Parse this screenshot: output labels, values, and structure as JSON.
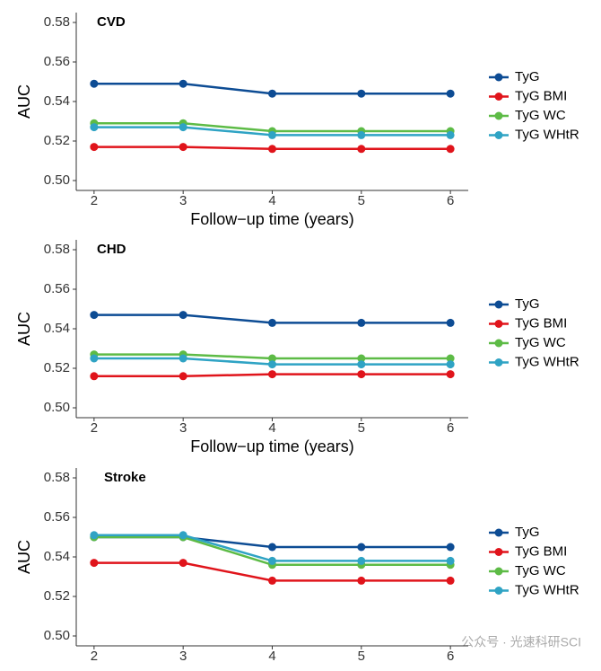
{
  "chart_data": [
    {
      "type": "line",
      "title": "CVD",
      "x": [
        2,
        3,
        4,
        5,
        6
      ],
      "xlabel": "Follow−up time (years)",
      "ylabel": "AUC",
      "xlim": [
        1.8,
        6.2
      ],
      "xticks": [
        2,
        3,
        4,
        5,
        6
      ],
      "ylim": [
        0.495,
        0.585
      ],
      "yticks": [
        {
          "value": 0.5,
          "label": "0.50"
        },
        {
          "value": 0.52,
          "label": "0.52"
        },
        {
          "value": 0.54,
          "label": "0.54"
        },
        {
          "value": 0.56,
          "label": "0.56"
        },
        {
          "value": 0.58,
          "label": "0.58"
        }
      ],
      "series": [
        {
          "name": "TyG",
          "color": "#0d4c94",
          "values": [
            0.549,
            0.549,
            0.544,
            0.544,
            0.544
          ]
        },
        {
          "name": "TyG BMI",
          "color": "#e0141b",
          "values": [
            0.517,
            0.517,
            0.516,
            0.516,
            0.516
          ]
        },
        {
          "name": "TyG WC",
          "color": "#5dbb46",
          "values": [
            0.529,
            0.529,
            0.525,
            0.525,
            0.525
          ]
        },
        {
          "name": "TyG WHtR",
          "color": "#2fa3c4",
          "values": [
            0.527,
            0.527,
            0.523,
            0.523,
            0.523
          ]
        }
      ]
    },
    {
      "type": "line",
      "title": "CHD",
      "x": [
        2,
        3,
        4,
        5,
        6
      ],
      "xlabel": "Follow−up time (years)",
      "ylabel": "AUC",
      "xlim": [
        1.8,
        6.2
      ],
      "xticks": [
        2,
        3,
        4,
        5,
        6
      ],
      "ylim": [
        0.495,
        0.585
      ],
      "yticks": [
        {
          "value": 0.5,
          "label": "0.50"
        },
        {
          "value": 0.52,
          "label": "0.52"
        },
        {
          "value": 0.54,
          "label": "0.54"
        },
        {
          "value": 0.56,
          "label": "0.56"
        },
        {
          "value": 0.58,
          "label": "0.58"
        }
      ],
      "series": [
        {
          "name": "TyG",
          "color": "#0d4c94",
          "values": [
            0.547,
            0.547,
            0.543,
            0.543,
            0.543
          ]
        },
        {
          "name": "TyG BMI",
          "color": "#e0141b",
          "values": [
            0.516,
            0.516,
            0.517,
            0.517,
            0.517
          ]
        },
        {
          "name": "TyG WC",
          "color": "#5dbb46",
          "values": [
            0.527,
            0.527,
            0.525,
            0.525,
            0.525
          ]
        },
        {
          "name": "TyG WHtR",
          "color": "#2fa3c4",
          "values": [
            0.525,
            0.525,
            0.522,
            0.522,
            0.522
          ]
        }
      ]
    },
    {
      "type": "line",
      "title": "Stroke",
      "x": [
        2,
        3,
        4,
        5,
        6
      ],
      "ylabel": "AUC",
      "xlim": [
        1.8,
        6.2
      ],
      "xticks": [
        2,
        3,
        4,
        5,
        6
      ],
      "ylim": [
        0.495,
        0.585
      ],
      "yticks": [
        {
          "value": 0.5,
          "label": "0.50"
        },
        {
          "value": 0.52,
          "label": "0.52"
        },
        {
          "value": 0.54,
          "label": "0.54"
        },
        {
          "value": 0.56,
          "label": "0.56"
        },
        {
          "value": 0.58,
          "label": "0.58"
        }
      ],
      "series": [
        {
          "name": "TyG",
          "color": "#0d4c94",
          "values": [
            0.55,
            0.55,
            0.545,
            0.545,
            0.545
          ]
        },
        {
          "name": "TyG BMI",
          "color": "#e0141b",
          "values": [
            0.537,
            0.537,
            0.528,
            0.528,
            0.528
          ]
        },
        {
          "name": "TyG WC",
          "color": "#5dbb46",
          "values": [
            0.55,
            0.55,
            0.536,
            0.536,
            0.536
          ]
        },
        {
          "name": "TyG WHtR",
          "color": "#2fa3c4",
          "values": [
            0.551,
            0.551,
            0.538,
            0.538,
            0.538
          ]
        }
      ]
    }
  ],
  "watermark": "公众号 · 光速科研SCI"
}
